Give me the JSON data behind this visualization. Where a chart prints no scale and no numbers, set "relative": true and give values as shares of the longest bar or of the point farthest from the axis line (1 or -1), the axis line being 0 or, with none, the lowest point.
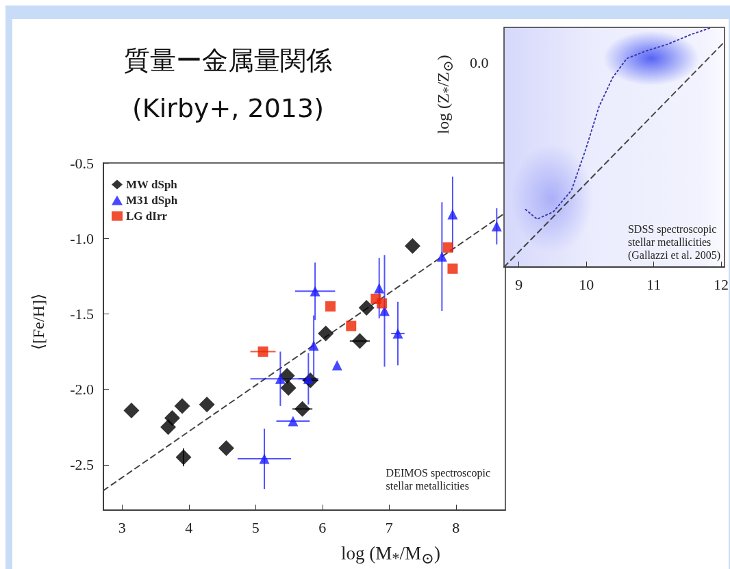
{
  "chart_data": [
    {
      "type": "scatter",
      "title": "質量ー金属量関係",
      "subtitle": "(Kirby+, 2013)",
      "xlabel": "log (M$_{*}$/M$_{⊙}$)",
      "ylabel": "⟨[Fe/H]⟩",
      "xlim": [
        2.72,
        8.74
      ],
      "ylim": [
        -2.8,
        -0.5
      ],
      "xticks": [
        3,
        4,
        5,
        6,
        7,
        8
      ],
      "yticks": [
        {
          "value": -2.5,
          "label": "-2.5"
        },
        {
          "value": -2,
          "label": "-2.0"
        },
        {
          "value": -1.5,
          "label": "-1.5"
        },
        {
          "value": -1,
          "label": "-1.0"
        },
        {
          "value": -0.5,
          "label": "-0.5"
        }
      ],
      "grid": false,
      "legend": "top left",
      "annotations": [
        "DEIMOS spectroscopic\nstellar metallicities"
      ],
      "series": [
        {
          "name": "MW dSph",
          "color": "#000000",
          "marker": "diamond",
          "x": [
            3.14,
            3.69,
            3.75,
            3.9,
            4.27,
            3.92,
            4.56,
            5.47,
            5.49,
            5.7,
            5.82,
            6.05,
            6.56,
            6.66,
            7.35
          ],
          "values": [
            -2.14,
            -2.25,
            -2.19,
            -2.11,
            -2.1,
            -2.45,
            -2.39,
            -1.91,
            -1.99,
            -2.13,
            -1.94,
            -1.63,
            -1.68,
            -1.46,
            -1.05
          ],
          "errors": [
            null,
            null,
            null,
            null,
            null,
            0.06,
            null,
            null,
            null,
            null,
            null,
            null,
            null,
            null,
            null
          ],
          "xerrors": [
            null,
            null,
            null,
            null,
            null,
            null,
            null,
            null,
            null,
            0.15,
            0.12,
            null,
            0.15,
            null,
            null
          ]
        },
        {
          "name": "M31 dSph",
          "color": "#1a1aff",
          "marker": "triangle",
          "x": [
            5.13,
            5.37,
            5.56,
            5.79,
            5.87,
            5.89,
            6.22,
            6.85,
            6.93,
            7.13,
            7.79,
            7.95,
            8.61
          ],
          "values": [
            -2.46,
            -1.93,
            -2.21,
            -1.93,
            -1.71,
            -1.35,
            -1.84,
            -1.33,
            -1.48,
            -1.63,
            -1.12,
            -0.84,
            -0.92
          ],
          "errors": [
            0.2,
            0.18,
            null,
            0.17,
            0.2,
            0.19,
            null,
            0.2,
            0.37,
            0.21,
            0.36,
            0.25,
            0.12
          ],
          "xerrors": [
            0.4,
            0.45,
            0.25,
            0.15,
            null,
            0.3,
            null,
            null,
            null,
            0.1,
            null,
            null,
            null
          ]
        },
        {
          "name": "LG dIrr",
          "color": "#ee2200",
          "marker": "square",
          "x": [
            5.11,
            6.12,
            6.43,
            6.8,
            6.89,
            7.88,
            7.95
          ],
          "values": [
            -1.75,
            -1.45,
            -1.58,
            -1.4,
            -1.43,
            -1.06,
            -1.2
          ],
          "xerrors": [
            0.19,
            null,
            null,
            null,
            null,
            null,
            null
          ]
        },
        {
          "type": "line",
          "color": "#444444",
          "line_style": "dashed",
          "marker": "none",
          "x": [
            2.72,
            8.74
          ],
          "values": [
            -2.67,
            -0.83
          ]
        }
      ]
    },
    {
      "type": "line",
      "relative": true,
      "ylabel": "log (Z$_{*}$/Z$_{⊙}$)",
      "xlim": [
        8.78,
        12.05
      ],
      "xticks": [
        9,
        10,
        11,
        12
      ],
      "grid": false,
      "annotations": [
        "SDSS spectroscopic\nstellar metallicities\n(Gallazzi et al. 2005)",
        "0.0"
      ],
      "series": [
        {
          "color": "#3a3ab0",
          "line_style": "dotted",
          "marker": "none",
          "x": [
            9.1,
            9.27,
            9.51,
            9.78,
            9.99,
            10.19,
            10.39,
            10.6,
            10.87,
            11.21,
            11.55,
            11.86
          ],
          "values": [
            0.24,
            0.2,
            0.23,
            0.32,
            0.49,
            0.67,
            0.79,
            0.87,
            0.9,
            0.93,
            0.97,
            1
          ]
        },
        {
          "color": "#444444",
          "line_style": "dashed",
          "marker": "none",
          "x": [
            8.78,
            12.05
          ],
          "values": [
            0,
            0.94
          ]
        }
      ]
    }
  ]
}
